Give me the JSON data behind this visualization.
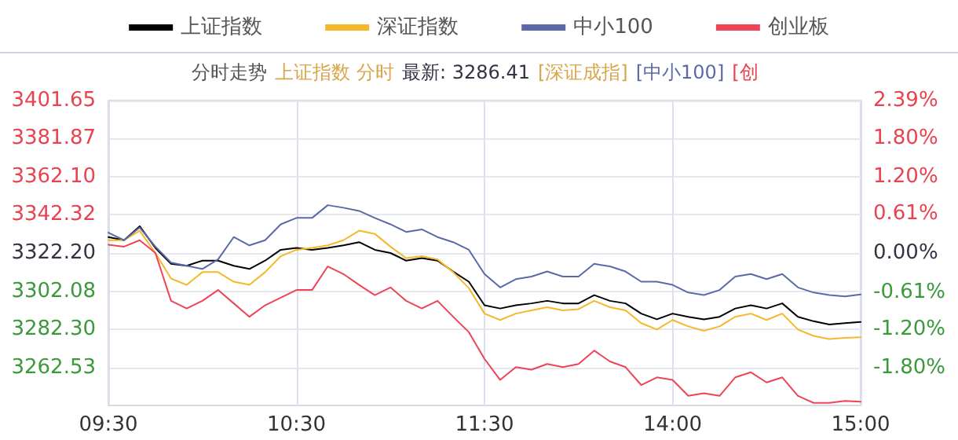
{
  "chart_data": {
    "type": "line",
    "title": "分时走势",
    "annotations": [
      "上证指数 分时",
      "最新: 3286.41",
      "[深证成指]",
      "[中小100]",
      "[创"
    ],
    "categories": [
      "09:30",
      null,
      null,
      null,
      null,
      null,
      null,
      null,
      null,
      null,
      null,
      null,
      "10:30",
      null,
      null,
      null,
      null,
      null,
      null,
      null,
      null,
      null,
      null,
      null,
      "11:30",
      null,
      null,
      null,
      null,
      null,
      null,
      null,
      null,
      null,
      null,
      null,
      "14:00",
      null,
      null,
      null,
      null,
      null,
      null,
      null,
      null,
      null,
      null,
      null,
      "15:00"
    ],
    "series": [
      {
        "name": "上证指数",
        "color": "#000000",
        "axis": "y2",
        "values": [
          0.25,
          0.2,
          0.42,
          0.08,
          -0.17,
          -0.2,
          -0.12,
          -0.12,
          -0.2,
          -0.25,
          -0.12,
          0.05,
          0.08,
          0.05,
          0.08,
          0.12,
          0.17,
          0.05,
          0,
          -0.12,
          -0.08,
          -0.12,
          -0.29,
          -0.45,
          -0.82,
          -0.87,
          -0.82,
          -0.79,
          -0.75,
          -0.79,
          -0.79,
          -0.66,
          -0.75,
          -0.79,
          -0.95,
          -1.04,
          -0.95,
          -1,
          -1.04,
          -1,
          -0.87,
          -0.82,
          -0.87,
          -0.79,
          -1,
          -1.07,
          -1.12,
          -1.1,
          -1.08
        ]
      },
      {
        "name": "深证指数",
        "color": "#f5b829",
        "axis": "y2",
        "values": [
          0.2,
          0.2,
          0.35,
          0,
          -0.4,
          -0.5,
          -0.3,
          -0.3,
          -0.45,
          -0.5,
          -0.3,
          -0.05,
          0.05,
          0.08,
          0.12,
          0.2,
          0.35,
          0.3,
          0.1,
          -0.08,
          -0.05,
          -0.1,
          -0.3,
          -0.55,
          -0.95,
          -1.05,
          -0.95,
          -0.9,
          -0.85,
          -0.9,
          -0.88,
          -0.75,
          -0.85,
          -0.9,
          -1.1,
          -1.2,
          -1.05,
          -1.15,
          -1.22,
          -1.15,
          -1,
          -0.95,
          -1.05,
          -0.95,
          -1.2,
          -1.3,
          -1.35,
          -1.33,
          -1.32
        ]
      },
      {
        "name": "中小100",
        "color": "#5a6aa8",
        "axis": "y2",
        "values": [
          0.32,
          0.2,
          0.4,
          0.1,
          -0.15,
          -0.2,
          -0.25,
          -0.1,
          0.25,
          0.12,
          0.2,
          0.45,
          0.55,
          0.55,
          0.75,
          0.71,
          0.66,
          0.55,
          0.45,
          0.33,
          0.37,
          0.25,
          0.17,
          0.05,
          -0.33,
          -0.54,
          -0.41,
          -0.37,
          -0.29,
          -0.37,
          -0.37,
          -0.17,
          -0.21,
          -0.29,
          -0.45,
          -0.45,
          -0.5,
          -0.62,
          -0.66,
          -0.58,
          -0.37,
          -0.33,
          -0.41,
          -0.33,
          -0.54,
          -0.62,
          -0.66,
          -0.68,
          -0.65
        ]
      },
      {
        "name": "创业板",
        "color": "#ee4455",
        "axis": "y2",
        "values": [
          0.13,
          0.1,
          0.2,
          0,
          -0.75,
          -0.87,
          -0.75,
          -0.58,
          -0.79,
          -1,
          -0.82,
          -0.7,
          -0.58,
          -0.58,
          -0.21,
          -0.33,
          -0.5,
          -0.66,
          -0.54,
          -0.75,
          -0.87,
          -0.75,
          -1,
          -1.24,
          -1.66,
          -1.99,
          -1.79,
          -1.83,
          -1.74,
          -1.79,
          -1.74,
          -1.53,
          -1.7,
          -1.79,
          -2.07,
          -1.95,
          -1.99,
          -2.24,
          -2.2,
          -2.24,
          -1.95,
          -1.87,
          -2.03,
          -1.95,
          -2.24,
          -2.35,
          -2.35,
          -2.32,
          -2.33
        ]
      }
    ],
    "ylim": [
      3242.75,
      3401.65
    ],
    "yticks": [
      {
        "value": 3401.65,
        "label": "3401.65"
      },
      {
        "value": 3381.87,
        "label": "3381.87"
      },
      {
        "value": 3362.1,
        "label": "3362.10"
      },
      {
        "value": 3342.32,
        "label": "3342.32"
      },
      {
        "value": 3322.2,
        "label": "3322.20"
      },
      {
        "value": 3302.08,
        "label": "3302.08"
      },
      {
        "value": 3282.3,
        "label": "3282.30"
      },
      {
        "value": 3262.53,
        "label": "3262.53"
      }
    ],
    "y2lim": [
      -2.39,
      2.39
    ],
    "y2ticks": [
      {
        "value": 2.39,
        "label": "2.39%"
      },
      {
        "value": 1.8,
        "label": "1.80%"
      },
      {
        "value": 1.2,
        "label": "1.20%"
      },
      {
        "value": 0.61,
        "label": "0.61%"
      },
      {
        "value": 0,
        "label": "0.00%"
      },
      {
        "value": -0.61,
        "label": "-0.61%"
      },
      {
        "value": -1.2,
        "label": "-1.20%"
      },
      {
        "value": -1.8,
        "label": "-1.80%"
      }
    ],
    "grid": true,
    "legend": "top",
    "marker": "none",
    "line_style": "solid"
  }
}
